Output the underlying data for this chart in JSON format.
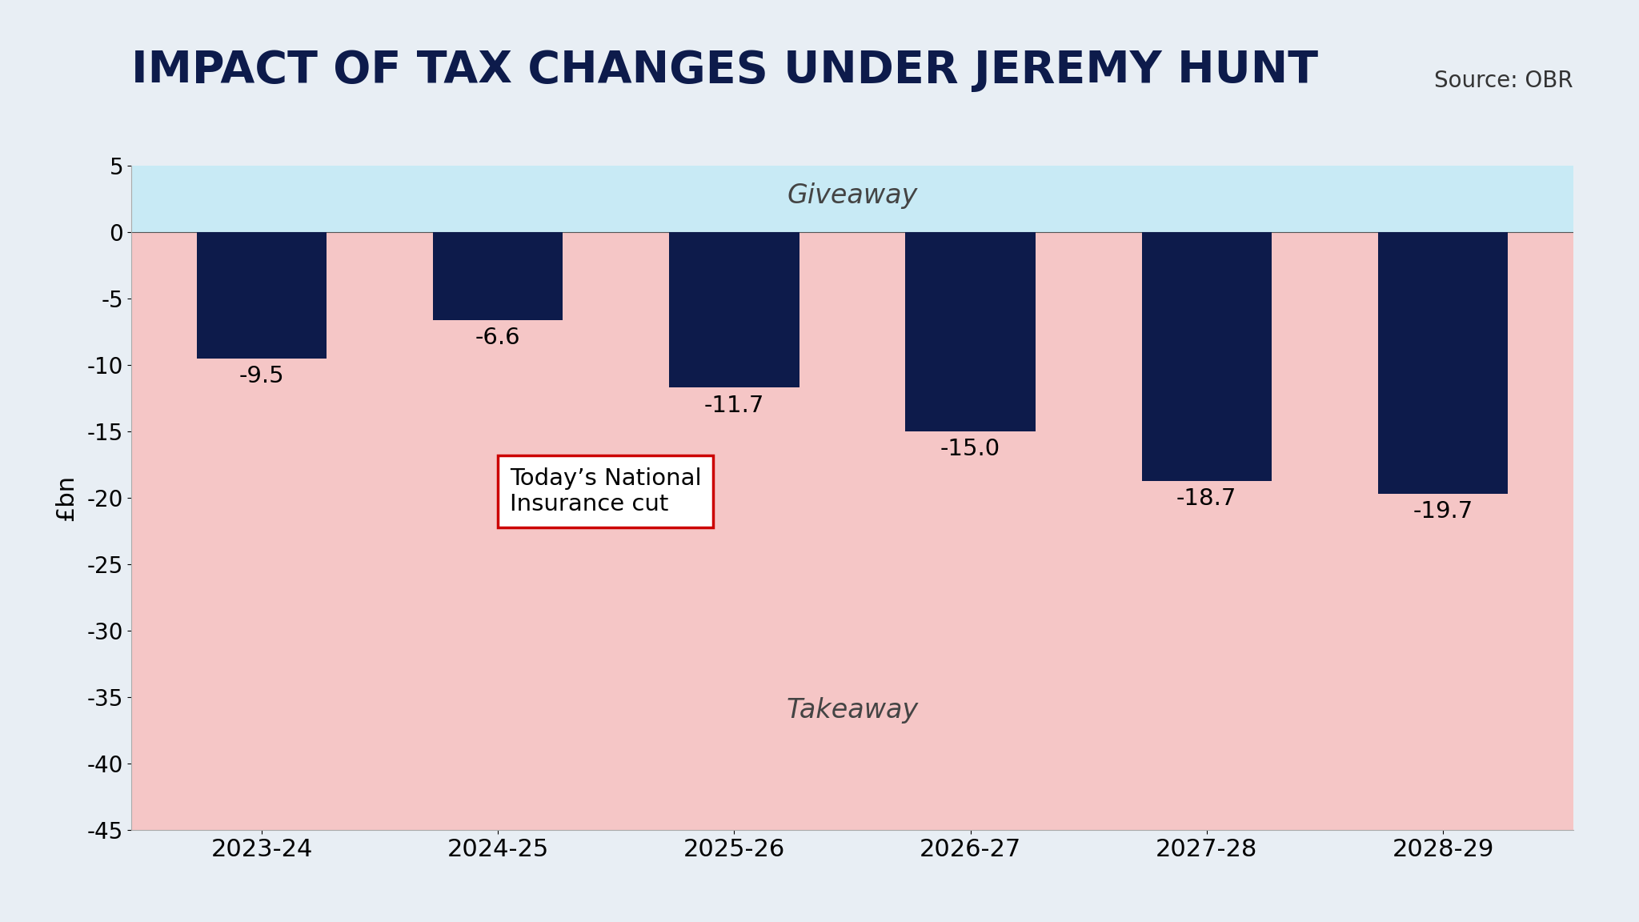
{
  "title": "IMPACT OF TAX CHANGES UNDER JEREMY HUNT",
  "source": "Source: OBR",
  "ylabel": "£bn",
  "categories": [
    "2023-24",
    "2024-25",
    "2025-26",
    "2026-27",
    "2027-28",
    "2028-29"
  ],
  "values": [
    -9.5,
    -6.6,
    -11.7,
    -15.0,
    -18.7,
    -19.7
  ],
  "bar_color": "#0d1b4b",
  "ylim": [
    -45,
    5
  ],
  "yticks": [
    5,
    0,
    -5,
    -10,
    -15,
    -20,
    -25,
    -30,
    -35,
    -40,
    -45
  ],
  "giveaway_color": "#c8eaf5",
  "takeaway_color": "#f5c6c6",
  "giveaway_label": "Giveaway",
  "takeaway_label": "Takeaway",
  "annotation_text": "Today’s National\nInsurance cut",
  "annotation_box_color": "#ffffff",
  "annotation_border_color": "#cc0000",
  "background_color": "#e8eef4",
  "title_color": "#0d1b4b",
  "source_color": "#333333"
}
